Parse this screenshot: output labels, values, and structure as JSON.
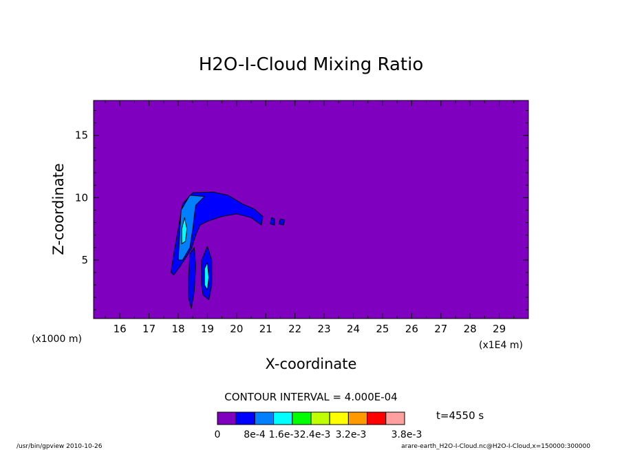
{
  "chart_data": {
    "type": "contour",
    "title": "H2O-I-Cloud Mixing Ratio",
    "xlabel": "X-coordinate",
    "ylabel": "Z-coordinate",
    "x_scale_label": "(x1000 m)",
    "x_unit_label": "(x1E4 m)",
    "xlim": [
      15.1,
      30.0
    ],
    "ylim": [
      0.3,
      17.8
    ],
    "x_ticks": [
      16,
      17,
      18,
      19,
      20,
      21,
      22,
      23,
      24,
      25,
      26,
      27,
      28,
      29
    ],
    "y_ticks": [
      5,
      10,
      15
    ],
    "contour_interval_text": "CONTOUR INTERVAL = 4.000E-04",
    "time_text": "t=4550 s",
    "color_levels": [
      "#7f00bf",
      "#0000ff",
      "#007fff",
      "#00ffff",
      "#00ff7f",
      "#00ff00",
      "#bfff00",
      "#ffff00",
      "#ff9900",
      "#ff0000",
      "#ffa0a0"
    ],
    "legend_labels": [
      "0",
      "8e-4",
      "1.6e-3",
      "2.4e-3",
      "3.2e-3",
      "3.8e-3"
    ],
    "regions": [
      {
        "level": 1,
        "points": [
          [
            17.75,
            4.0
          ],
          [
            17.85,
            5.5
          ],
          [
            18.0,
            7.5
          ],
          [
            18.15,
            9.5
          ],
          [
            18.5,
            10.4
          ],
          [
            19.2,
            10.45
          ],
          [
            19.7,
            10.2
          ],
          [
            20.2,
            9.5
          ],
          [
            20.6,
            9.1
          ],
          [
            20.9,
            8.5
          ],
          [
            20.85,
            7.8
          ],
          [
            20.5,
            8.4
          ],
          [
            20.0,
            8.7
          ],
          [
            19.5,
            8.5
          ],
          [
            19.0,
            8.1
          ],
          [
            18.75,
            7.8
          ],
          [
            18.6,
            7.0
          ],
          [
            18.45,
            5.9
          ],
          [
            18.1,
            4.6
          ],
          [
            17.85,
            3.8
          ]
        ]
      },
      {
        "level": 2,
        "points": [
          [
            18.0,
            5.0
          ],
          [
            18.05,
            7.0
          ],
          [
            18.1,
            9.0
          ],
          [
            18.4,
            10.2
          ],
          [
            18.9,
            10.1
          ],
          [
            18.6,
            9.4
          ],
          [
            18.55,
            8.5
          ],
          [
            18.5,
            7.5
          ],
          [
            18.4,
            6.0
          ],
          [
            18.15,
            5.0
          ]
        ]
      },
      {
        "level": 3,
        "points": [
          [
            18.12,
            6.3
          ],
          [
            18.12,
            7.5
          ],
          [
            18.22,
            8.4
          ],
          [
            18.3,
            7.5
          ],
          [
            18.25,
            6.5
          ]
        ]
      },
      {
        "level": 1,
        "points": [
          [
            18.35,
            3.5
          ],
          [
            18.4,
            5.5
          ],
          [
            18.55,
            6.0
          ],
          [
            18.6,
            4.5
          ],
          [
            18.55,
            2.5
          ],
          [
            18.45,
            1.1
          ],
          [
            18.35,
            2.0
          ]
        ]
      },
      {
        "level": 1,
        "points": [
          [
            18.8,
            3.0
          ],
          [
            18.8,
            5.0
          ],
          [
            19.0,
            6.1
          ],
          [
            19.15,
            5.0
          ],
          [
            19.15,
            3.0
          ],
          [
            19.05,
            1.8
          ],
          [
            18.85,
            2.2
          ]
        ]
      },
      {
        "level": 3,
        "points": [
          [
            18.9,
            3.0
          ],
          [
            18.9,
            4.3
          ],
          [
            19.0,
            4.8
          ],
          [
            19.05,
            3.6
          ],
          [
            19.0,
            2.6
          ]
        ]
      },
      {
        "level": 1,
        "points": [
          [
            21.2,
            8.4
          ],
          [
            21.3,
            8.3
          ],
          [
            21.3,
            7.8
          ],
          [
            21.15,
            7.9
          ]
        ]
      },
      {
        "level": 1,
        "points": [
          [
            21.5,
            8.3
          ],
          [
            21.65,
            8.2
          ],
          [
            21.6,
            7.8
          ],
          [
            21.45,
            7.9
          ]
        ]
      }
    ]
  },
  "footer": {
    "left": "/usr/bin/gpview   2010-10-26",
    "right": "arare-earth_H2O-I-Cloud.nc@H2O-I-Cloud,x=150000:300000"
  }
}
